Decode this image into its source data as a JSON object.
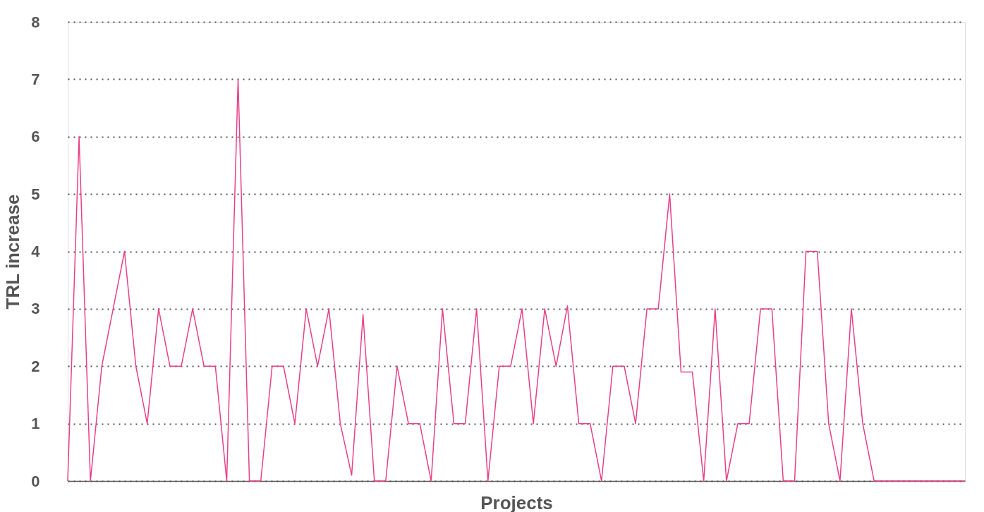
{
  "chart_data": {
    "type": "line",
    "xlabel": "Projects",
    "ylabel": "TRL increase",
    "categories": [
      null,
      null,
      null,
      null,
      null,
      null,
      null,
      null,
      null,
      null,
      null,
      null,
      null,
      null,
      null,
      null,
      null,
      null,
      null,
      null,
      null,
      null,
      null,
      null,
      null,
      null,
      null,
      null,
      null,
      null,
      null,
      null,
      null,
      null,
      null,
      null,
      null,
      null,
      null,
      null,
      null,
      null,
      null,
      null,
      null,
      null,
      null,
      null,
      null,
      null,
      null,
      null,
      null,
      null,
      null,
      null,
      null,
      null,
      null,
      null,
      null,
      null,
      null,
      null,
      null,
      null,
      null,
      null,
      null,
      null,
      null,
      null,
      null,
      null,
      null,
      null,
      null,
      null,
      null,
      null
    ],
    "series": [
      {
        "color": "#e8408a",
        "values": [
          0,
          6,
          0,
          2,
          3,
          4,
          2,
          1,
          3,
          2,
          2,
          3,
          2,
          2,
          0,
          7,
          0,
          0,
          2,
          2,
          1,
          3,
          2,
          3,
          1,
          0.1,
          2.9,
          0,
          0,
          2,
          1,
          1,
          0,
          3,
          1,
          1,
          3,
          0,
          2,
          2,
          3,
          1,
          3,
          2,
          3.05,
          1,
          1,
          0,
          2,
          2,
          1,
          3,
          3,
          5,
          1.9,
          1.9,
          0,
          3,
          0,
          1,
          1,
          3,
          3,
          0,
          0,
          4,
          4,
          1,
          0,
          3,
          1,
          0,
          0,
          0,
          0,
          0,
          0,
          0,
          0,
          0
        ]
      }
    ],
    "ylim": [
      0,
      8
    ],
    "yticks": [
      0,
      1,
      2,
      3,
      4,
      5,
      6,
      7,
      8
    ],
    "grid": "y",
    "marker": "none",
    "line_style": "solid",
    "legend": false
  }
}
